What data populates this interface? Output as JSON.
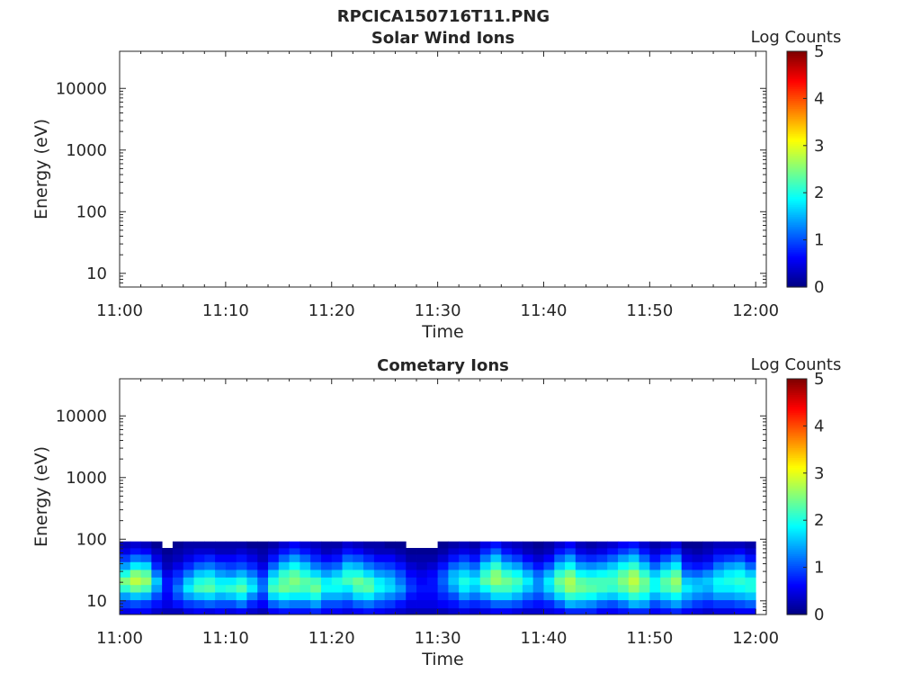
{
  "figure": {
    "title": "RPCICA150716T11.PNG"
  },
  "colormap": {
    "name": "jet",
    "stops": [
      "#00007f",
      "#0000ff",
      "#007fff",
      "#00ffff",
      "#7fff7f",
      "#ffff00",
      "#ff7f00",
      "#ff0000",
      "#7f0000"
    ]
  },
  "chart_data": [
    {
      "type": "heatmap",
      "title": "Solar Wind Ions",
      "xlabel": "Time",
      "ylabel": "Energy (eV)",
      "xticks": [
        "11:00",
        "11:10",
        "11:20",
        "11:30",
        "11:40",
        "11:50",
        "12:00"
      ],
      "xlim_minutes": [
        0,
        61
      ],
      "yscale": "log",
      "ylim": [
        6,
        40000
      ],
      "yticks": [
        10,
        100,
        1000,
        10000
      ],
      "ytick_labels": [
        "10",
        "100",
        "1000",
        "10000"
      ],
      "colorbar": {
        "label": "Log Counts",
        "range": [
          0,
          5
        ],
        "ticks": [
          "0",
          "1",
          "2",
          "3",
          "4",
          "5"
        ]
      },
      "cells": []
    },
    {
      "type": "heatmap",
      "title": "Cometary Ions",
      "xlabel": "Time",
      "ylabel": "Energy (eV)",
      "xticks": [
        "11:00",
        "11:10",
        "11:20",
        "11:30",
        "11:40",
        "11:50",
        "12:00"
      ],
      "xlim_minutes": [
        0,
        61
      ],
      "yscale": "log",
      "ylim": [
        6,
        40000
      ],
      "yticks": [
        10,
        100,
        1000,
        10000
      ],
      "ytick_labels": [
        "10",
        "100",
        "1000",
        "10000"
      ],
      "colorbar": {
        "label": "Log Counts",
        "range": [
          0,
          5
        ],
        "ticks": [
          "0",
          "1",
          "2",
          "3",
          "4",
          "5"
        ]
      },
      "energy_bins_eV": [
        6.5,
        9,
        12,
        16,
        21,
        28,
        37,
        50,
        65,
        80
      ],
      "time_bins_minutes": [
        0,
        1,
        2,
        3,
        4,
        5,
        6,
        7,
        8,
        9,
        10,
        11,
        12,
        13,
        14,
        15,
        16,
        17,
        18,
        19,
        20,
        21,
        22,
        23,
        24,
        25,
        26,
        27,
        28,
        29,
        30,
        31,
        32,
        33,
        34,
        35,
        36,
        37,
        38,
        39,
        40,
        41,
        42,
        43,
        44,
        45,
        46,
        47,
        48,
        49,
        50,
        51,
        52,
        53,
        54,
        55,
        56,
        57,
        58,
        59
      ],
      "log_counts": [
        [
          0.5,
          0.6,
          0.6,
          0.4,
          0.3,
          0.3,
          0.5,
          0.6,
          0.5,
          0.6,
          0.5,
          0.6,
          0.4,
          0.3,
          0.6,
          0.7,
          0.7,
          0.7,
          0.8,
          0.6,
          0.6,
          0.5,
          0.6,
          0.7,
          0.6,
          0.5,
          0.4,
          0.3,
          0.3,
          0.3,
          0.3,
          0.4,
          0.5,
          0.4,
          0.5,
          0.6,
          0.6,
          0.5,
          0.4,
          0.4,
          0.5,
          0.6,
          0.8,
          0.8,
          0.8,
          0.6,
          0.6,
          0.7,
          0.8,
          0.8,
          0.6,
          0.7,
          0.8,
          0.6,
          0.5,
          0.4,
          0.5,
          0.5,
          0.6,
          0.6
        ],
        [
          0.9,
          1.0,
          0.9,
          0.7,
          0.5,
          0.7,
          0.9,
          1.0,
          1.1,
          1.0,
          1.0,
          1.2,
          0.8,
          0.6,
          1.1,
          1.3,
          1.2,
          1.2,
          1.4,
          1.0,
          1.0,
          0.9,
          1.1,
          1.2,
          1.0,
          0.9,
          0.7,
          0.5,
          0.5,
          0.5,
          0.6,
          0.7,
          0.9,
          0.8,
          0.9,
          1.1,
          1.1,
          1.0,
          0.8,
          0.7,
          0.8,
          1.1,
          1.5,
          1.4,
          1.3,
          1.1,
          1.0,
          1.2,
          1.5,
          1.4,
          1.0,
          1.2,
          1.4,
          1.1,
          0.9,
          0.8,
          0.9,
          0.9,
          1.0,
          1.1
        ],
        [
          1.4,
          1.6,
          1.5,
          1.0,
          0.6,
          1.0,
          1.4,
          1.6,
          1.7,
          1.5,
          1.6,
          1.8,
          1.3,
          0.9,
          1.7,
          1.9,
          1.8,
          1.8,
          2.0,
          1.5,
          1.5,
          1.4,
          1.7,
          1.8,
          1.5,
          1.3,
          1.1,
          0.7,
          0.6,
          0.6,
          0.8,
          1.0,
          1.4,
          1.2,
          1.4,
          1.7,
          1.7,
          1.5,
          1.2,
          1.0,
          1.3,
          1.7,
          2.1,
          2.0,
          1.9,
          1.7,
          1.6,
          1.8,
          2.1,
          1.9,
          1.5,
          1.7,
          1.9,
          1.5,
          1.3,
          1.2,
          1.4,
          1.4,
          1.5,
          1.6
        ],
        [
          2.1,
          2.4,
          2.2,
          1.4,
          0.7,
          1.2,
          1.8,
          2.2,
          2.3,
          2.0,
          2.1,
          2.3,
          1.8,
          1.2,
          2.2,
          2.4,
          2.3,
          2.2,
          2.4,
          1.9,
          1.9,
          1.8,
          2.2,
          2.3,
          1.9,
          1.7,
          1.4,
          0.9,
          0.7,
          0.7,
          1.0,
          1.4,
          1.8,
          1.6,
          1.9,
          2.2,
          2.2,
          2.0,
          1.6,
          1.3,
          1.7,
          2.2,
          2.6,
          2.4,
          2.3,
          2.2,
          2.1,
          2.3,
          2.6,
          2.3,
          1.9,
          2.2,
          2.4,
          1.8,
          1.6,
          1.5,
          1.8,
          1.8,
          1.9,
          2.0
        ],
        [
          2.5,
          2.8,
          2.6,
          1.6,
          0.7,
          1.0,
          1.6,
          2.0,
          2.1,
          1.8,
          1.8,
          2.0,
          1.6,
          1.1,
          2.0,
          2.3,
          2.5,
          2.3,
          2.2,
          1.8,
          2.0,
          2.2,
          2.4,
          2.2,
          1.8,
          1.6,
          1.2,
          0.8,
          0.6,
          0.7,
          1.1,
          1.6,
          2.0,
          1.8,
          2.3,
          2.6,
          2.4,
          2.2,
          1.8,
          1.3,
          1.8,
          2.4,
          2.7,
          2.3,
          2.2,
          2.2,
          2.2,
          2.5,
          2.8,
          2.4,
          1.9,
          2.3,
          2.6,
          1.6,
          1.5,
          1.6,
          1.9,
          2.0,
          2.1,
          2.0
        ],
        [
          2.0,
          2.5,
          2.3,
          1.2,
          0.5,
          0.8,
          1.2,
          1.6,
          1.7,
          1.4,
          1.3,
          1.5,
          1.2,
          0.8,
          1.6,
          2.1,
          2.3,
          2.0,
          1.7,
          1.4,
          1.6,
          2.0,
          2.0,
          1.7,
          1.4,
          1.3,
          1.0,
          0.6,
          0.5,
          0.6,
          1.0,
          1.5,
          1.7,
          1.5,
          2.1,
          2.5,
          2.1,
          1.9,
          1.5,
          1.1,
          1.5,
          2.1,
          2.4,
          1.9,
          1.8,
          1.9,
          2.0,
          2.3,
          2.6,
          2.1,
          1.6,
          2.0,
          2.3,
          1.2,
          1.1,
          1.3,
          1.6,
          1.8,
          1.9,
          1.6
        ],
        [
          1.4,
          1.8,
          1.7,
          0.8,
          0.3,
          0.5,
          0.8,
          1.1,
          1.2,
          1.0,
          0.9,
          1.0,
          0.8,
          0.5,
          1.1,
          1.6,
          1.9,
          1.6,
          1.2,
          1.0,
          1.1,
          1.6,
          1.5,
          1.2,
          1.0,
          0.9,
          0.7,
          0.4,
          0.3,
          0.4,
          0.7,
          1.1,
          1.3,
          1.1,
          1.7,
          2.1,
          1.6,
          1.4,
          1.0,
          0.7,
          1.0,
          1.6,
          1.9,
          1.4,
          1.3,
          1.4,
          1.6,
          1.9,
          2.1,
          1.6,
          1.1,
          1.5,
          1.8,
          0.8,
          0.7,
          0.8,
          1.2,
          1.4,
          1.5,
          1.1
        ],
        [
          0.9,
          1.2,
          1.1,
          0.5,
          0.2,
          0.3,
          0.5,
          0.7,
          0.8,
          0.6,
          0.6,
          0.7,
          0.5,
          0.3,
          0.7,
          1.1,
          1.4,
          1.1,
          0.8,
          0.6,
          0.7,
          1.1,
          1.0,
          0.8,
          0.6,
          0.6,
          0.4,
          0.2,
          0.2,
          0.2,
          0.4,
          0.7,
          0.9,
          0.7,
          1.2,
          1.6,
          1.1,
          0.9,
          0.6,
          0.4,
          0.6,
          1.1,
          1.4,
          0.9,
          0.8,
          0.9,
          1.1,
          1.4,
          1.6,
          1.1,
          0.7,
          1.0,
          1.3,
          0.5,
          0.4,
          0.5,
          0.8,
          0.9,
          1.0,
          0.7
        ],
        [
          0.5,
          0.7,
          0.6,
          0.3,
          0.1,
          0.2,
          0.3,
          0.4,
          0.4,
          0.3,
          0.3,
          0.4,
          0.3,
          0.2,
          0.4,
          0.7,
          0.9,
          0.7,
          0.5,
          0.3,
          0.4,
          0.7,
          0.6,
          0.4,
          0.3,
          0.3,
          0.2,
          0.1,
          0.1,
          0.1,
          0.2,
          0.4,
          0.5,
          0.4,
          0.8,
          1.1,
          0.7,
          0.5,
          0.3,
          0.2,
          0.3,
          0.7,
          0.9,
          0.5,
          0.4,
          0.5,
          0.7,
          0.9,
          1.1,
          0.7,
          0.4,
          0.6,
          0.8,
          0.3,
          0.2,
          0.3,
          0.5,
          0.5,
          0.6,
          0.4
        ],
        [
          0.3,
          0.4,
          0.3,
          0.1,
          0.0,
          0.1,
          0.2,
          0.2,
          0.2,
          0.2,
          0.2,
          0.2,
          0.1,
          0.1,
          0.2,
          0.4,
          0.6,
          0.4,
          0.3,
          0.2,
          0.2,
          0.4,
          0.3,
          0.2,
          0.2,
          0.1,
          0.1,
          0.0,
          0.0,
          0.0,
          0.1,
          0.2,
          0.3,
          0.2,
          0.5,
          0.7,
          0.4,
          0.3,
          0.2,
          0.1,
          0.2,
          0.4,
          0.6,
          0.3,
          0.2,
          0.3,
          0.4,
          0.6,
          0.7,
          0.4,
          0.2,
          0.3,
          0.5,
          0.1,
          0.1,
          0.2,
          0.3,
          0.3,
          0.3,
          0.2
        ]
      ]
    }
  ]
}
